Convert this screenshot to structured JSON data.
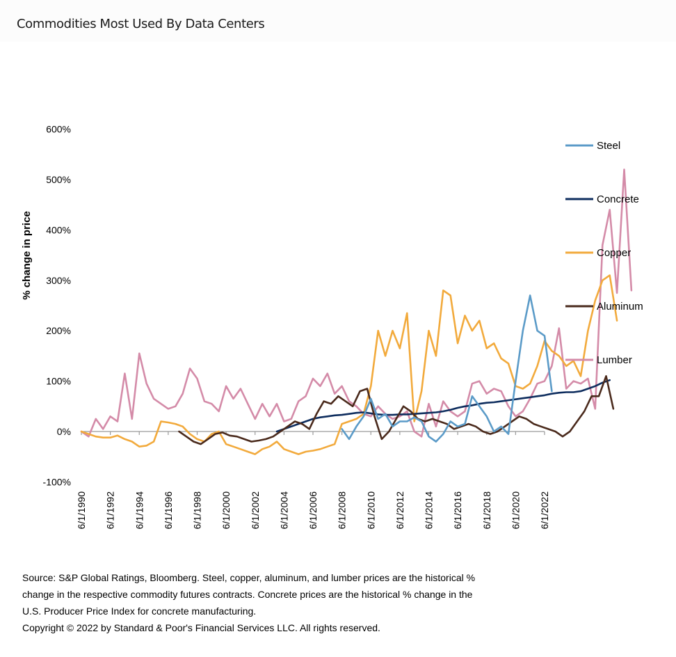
{
  "title": "Commodities Most Used By Data Centers",
  "footnote": {
    "lines": [
      "Source: S&P Global Ratings, Bloomberg. Steel, copper, aluminum, and lumber prices are the historical %",
      "change in the respective commodity futures contracts. Concrete prices are the historical % change in the",
      "U.S. Producer Price Index for concrete manufacturing.",
      "Copyright © 2022 by Standard & Poor's Financial Services LLC. All rights reserved."
    ]
  },
  "chart_data": {
    "type": "line",
    "title": "Commodities Most Used By Data Centers",
    "xlabel": "",
    "ylabel": "% change in price",
    "ylim": [
      -100,
      600
    ],
    "yticks": [
      -100,
      0,
      100,
      200,
      300,
      400,
      500,
      600
    ],
    "ytick_labels": [
      "-100%",
      "0%",
      "100%",
      "200%",
      "300%",
      "400%",
      "500%",
      "600%"
    ],
    "xlim": [
      1990.5,
      2022.5
    ],
    "xticks": [
      1990.5,
      1992.5,
      1994.5,
      1996.5,
      1998.5,
      2000.5,
      2002.5,
      2004.5,
      2006.5,
      2008.5,
      2010.5,
      2012.5,
      2014.5,
      2016.5,
      2018.5,
      2020.5,
      2022.5
    ],
    "xtick_labels": [
      "6/1/1990",
      "6/1/1992",
      "6/1/1994",
      "6/1/1996",
      "6/1/1998",
      "6/1/2000",
      "6/1/2002",
      "6/1/2004",
      "6/1/2006",
      "6/1/2008",
      "6/1/2010",
      "6/1/2012",
      "6/1/2014",
      "6/1/2016",
      "6/1/2018",
      "6/1/2020",
      "6/1/2022"
    ],
    "grid": false,
    "legend_position": "right",
    "x_step_years": 0.5,
    "x_start": 1990.5,
    "series": [
      {
        "name": "Steel",
        "color": "#5b9bc8",
        "start": 2008.5,
        "values": [
          5,
          -15,
          10,
          30,
          65,
          25,
          35,
          10,
          20,
          20,
          28,
          20,
          -10,
          -20,
          -5,
          20,
          10,
          15,
          70,
          50,
          30,
          0,
          10,
          -5,
          100,
          200,
          270,
          200,
          190,
          80
        ]
      },
      {
        "name": "Concrete",
        "color": "#0e2d5e",
        "start": 2004.0,
        "values": [
          0,
          5,
          10,
          15,
          20,
          25,
          28,
          30,
          32,
          33,
          35,
          37,
          38,
          36,
          34,
          33,
          33,
          34,
          34,
          35,
          36,
          37,
          38,
          40,
          43,
          47,
          50,
          52,
          55,
          57,
          58,
          60,
          62,
          64,
          66,
          68,
          70,
          72,
          75,
          77,
          78,
          78,
          80,
          85,
          90,
          97,
          102
        ]
      },
      {
        "name": "Copper",
        "color": "#f2aa3c",
        "start": 1990.5,
        "values": [
          0,
          -5,
          -10,
          -12,
          -12,
          -8,
          -15,
          -20,
          -30,
          -28,
          -20,
          20,
          18,
          15,
          10,
          -5,
          -15,
          -20,
          -5,
          0,
          -25,
          -30,
          -35,
          -40,
          -45,
          -35,
          -30,
          -20,
          -35,
          -40,
          -45,
          -40,
          -38,
          -35,
          -30,
          -25,
          15,
          20,
          25,
          35,
          90,
          200,
          150,
          200,
          165,
          235,
          20,
          80,
          200,
          150,
          280,
          270,
          175,
          230,
          200,
          220,
          165,
          175,
          145,
          135,
          90,
          85,
          95,
          130,
          180,
          160,
          150,
          130,
          140,
          110,
          200,
          260,
          300,
          310,
          220
        ]
      },
      {
        "name": "Aluminum",
        "color": "#4a2a1c",
        "start": 1997.25,
        "values": [
          0,
          -10,
          -20,
          -25,
          -15,
          -5,
          -2,
          -8,
          -10,
          -15,
          -20,
          -18,
          -15,
          -10,
          0,
          10,
          20,
          15,
          5,
          35,
          60,
          55,
          70,
          60,
          50,
          80,
          85,
          30,
          -15,
          0,
          25,
          50,
          40,
          25,
          20,
          25,
          20,
          15,
          5,
          10,
          15,
          10,
          0,
          -5,
          0,
          10,
          20,
          30,
          25,
          15,
          10,
          5,
          0,
          -10,
          0,
          20,
          40,
          70,
          70,
          110,
          45
        ]
      },
      {
        "name": "Lumber",
        "color": "#d48ba8",
        "start": 1990.5,
        "values": [
          0,
          -10,
          25,
          5,
          30,
          20,
          115,
          25,
          155,
          95,
          65,
          55,
          45,
          50,
          75,
          125,
          105,
          60,
          55,
          40,
          90,
          65,
          85,
          55,
          25,
          55,
          30,
          55,
          20,
          25,
          60,
          70,
          105,
          90,
          115,
          75,
          90,
          60,
          50,
          35,
          30,
          50,
          35,
          25,
          30,
          40,
          0,
          -10,
          55,
          10,
          60,
          40,
          30,
          40,
          95,
          100,
          75,
          85,
          80,
          50,
          30,
          40,
          65,
          95,
          100,
          130,
          205,
          85,
          100,
          95,
          105,
          45,
          370,
          440,
          275,
          520,
          280
        ]
      }
    ]
  }
}
